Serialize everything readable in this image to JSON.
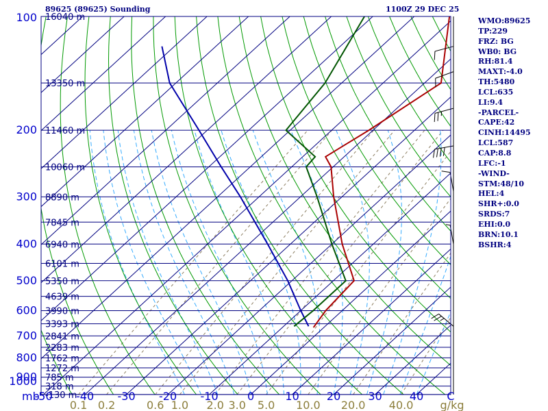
{
  "header": {
    "station": "89625 (89625) Sounding",
    "time": "1100Z 29 DEC 25"
  },
  "indices": [
    "WMO:89625",
    "TP:229",
    "FRZ: BG",
    "WB0: BG",
    "RH:81.4",
    "MAXT:-4.0",
    "TH:5480",
    "LCL:635",
    "LI:9.4",
    "-PARCEL-",
    "CAPE:42",
    "CINH:14495",
    "LCL:587",
    "CAP:8.8",
    "LFC:-1",
    "-WIND-",
    "STM:48/10",
    "HEL:4",
    "SHR+:0.0",
    "SRDS:7",
    "EHI:0.0",
    "BRN:10.1",
    "BSHR:4"
  ],
  "colors": {
    "frame": "#000080",
    "isobar": "#000080",
    "isotherm": "#000080",
    "dry_adiabat": "#009900",
    "moist_adiabat": "#33aaff",
    "mixing_ratio": "#8b7d60",
    "temperature": "#aa0000",
    "dewpoint": "#005500",
    "parcel": "#0000aa",
    "wind": "#000000",
    "axis_text": "#0000cc",
    "mixing_text": "#8b7d3a"
  },
  "chart_data": {
    "type": "skew-t",
    "title": "89625 (89625) Sounding",
    "xlabel": "C",
    "ylabel": "mb",
    "xlim": [
      -50,
      50
    ],
    "ylim": [
      1000,
      100
    ],
    "pressure_ticks": [
      {
        "p": 100,
        "label": "100"
      },
      {
        "p": 200,
        "label": "200"
      },
      {
        "p": 300,
        "label": "300"
      },
      {
        "p": 400,
        "label": "400"
      },
      {
        "p": 500,
        "label": "500"
      },
      {
        "p": 600,
        "label": "600"
      },
      {
        "p": 700,
        "label": "700"
      },
      {
        "p": 800,
        "label": "800"
      },
      {
        "p": 900,
        "label": "900"
      },
      {
        "p": 1000,
        "label": "1000"
      }
    ],
    "temp_ticks": [
      {
        "t": -50,
        "label": "-50"
      },
      {
        "t": -40,
        "label": "-40"
      },
      {
        "t": -30,
        "label": "-30"
      },
      {
        "t": -20,
        "label": "-20"
      },
      {
        "t": -10,
        "label": "-10"
      },
      {
        "t": 0,
        "label": "0"
      },
      {
        "t": 10,
        "label": "10"
      },
      {
        "t": 20,
        "label": "20"
      },
      {
        "t": 30,
        "label": "30"
      },
      {
        "t": 40,
        "label": "40"
      }
    ],
    "height_labels": [
      {
        "p": 100,
        "label": "16040 m"
      },
      {
        "p": 150,
        "label": "13350 m"
      },
      {
        "p": 200,
        "label": "11460 m"
      },
      {
        "p": 250,
        "label": "10060 m"
      },
      {
        "p": 300,
        "label": "8890 m"
      },
      {
        "p": 350,
        "label": "7845 m"
      },
      {
        "p": 400,
        "label": "6940 m"
      },
      {
        "p": 450,
        "label": "6101 m"
      },
      {
        "p": 500,
        "label": "5350 m"
      },
      {
        "p": 550,
        "label": "4639 m"
      },
      {
        "p": 600,
        "label": "3990 m"
      },
      {
        "p": 650,
        "label": "3393 m"
      },
      {
        "p": 700,
        "label": "2841 m"
      },
      {
        "p": 750,
        "label": "2283 m"
      },
      {
        "p": 800,
        "label": "1762 m"
      },
      {
        "p": 850,
        "label": "1272 m"
      },
      {
        "p": 900,
        "label": "785 m"
      },
      {
        "p": 950,
        "label": "318 m"
      },
      {
        "p": 1000,
        "label": "-130 m"
      }
    ],
    "mixing_ratios": [
      {
        "w": 0.1,
        "label": "0.1"
      },
      {
        "w": 0.2,
        "label": "0.2"
      },
      {
        "w": 0.6,
        "label": "0.6"
      },
      {
        "w": 1.0,
        "label": "1.0"
      },
      {
        "w": 2.0,
        "label": "2.0"
      },
      {
        "w": 3.0,
        "label": "3.0"
      },
      {
        "w": 5.0,
        "label": "5.0"
      },
      {
        "w": 10.0,
        "label": "10.0"
      },
      {
        "w": 20.0,
        "label": "20.0"
      },
      {
        "w": 40.0,
        "label": "40.0"
      }
    ],
    "mixing_ratio_unit": "g/kg",
    "temperature": [
      {
        "p": 665,
        "t": -2.5
      },
      {
        "p": 600,
        "t": -4.0
      },
      {
        "p": 500,
        "t": -5.0
      },
      {
        "p": 400,
        "t": -17.5
      },
      {
        "p": 300,
        "t": -32.0
      },
      {
        "p": 250,
        "t": -40.5
      },
      {
        "p": 235,
        "t": -44.5
      },
      {
        "p": 200,
        "t": -41.0
      },
      {
        "p": 150,
        "t": -36.0
      },
      {
        "p": 100,
        "t": -51.5
      }
    ],
    "dewpoint": [
      {
        "p": 660,
        "t": -7.5
      },
      {
        "p": 600,
        "t": -7.0
      },
      {
        "p": 500,
        "t": -7.0
      },
      {
        "p": 400,
        "t": -20.0
      },
      {
        "p": 300,
        "t": -36.0
      },
      {
        "p": 250,
        "t": -46.5
      },
      {
        "p": 235,
        "t": -47.0
      },
      {
        "p": 200,
        "t": -61.0
      },
      {
        "p": 150,
        "t": -64.0
      },
      {
        "p": 100,
        "t": -72.0
      }
    ],
    "parcel": [
      {
        "p": 660,
        "t": -4.0
      },
      {
        "p": 600,
        "t": -10.0
      },
      {
        "p": 500,
        "t": -21.0
      },
      {
        "p": 400,
        "t": -35.5
      },
      {
        "p": 300,
        "t": -54.5
      },
      {
        "p": 250,
        "t": -67.0
      },
      {
        "p": 200,
        "t": -82.0
      },
      {
        "p": 150,
        "t": -101.5
      },
      {
        "p": 120,
        "t": -113.0
      }
    ],
    "wind_barbs": [
      {
        "p": 660,
        "dir": 310,
        "speed": 25
      },
      {
        "p": 400,
        "dir": 350,
        "speed": 5
      },
      {
        "p": 290,
        "dir": 350,
        "speed": 10
      },
      {
        "p": 220,
        "dir": 260,
        "speed": 40
      },
      {
        "p": 175,
        "dir": 255,
        "speed": 25
      },
      {
        "p": 140,
        "dir": 250,
        "speed": 10
      },
      {
        "p": 120,
        "dir": 255,
        "speed": 10
      }
    ]
  }
}
